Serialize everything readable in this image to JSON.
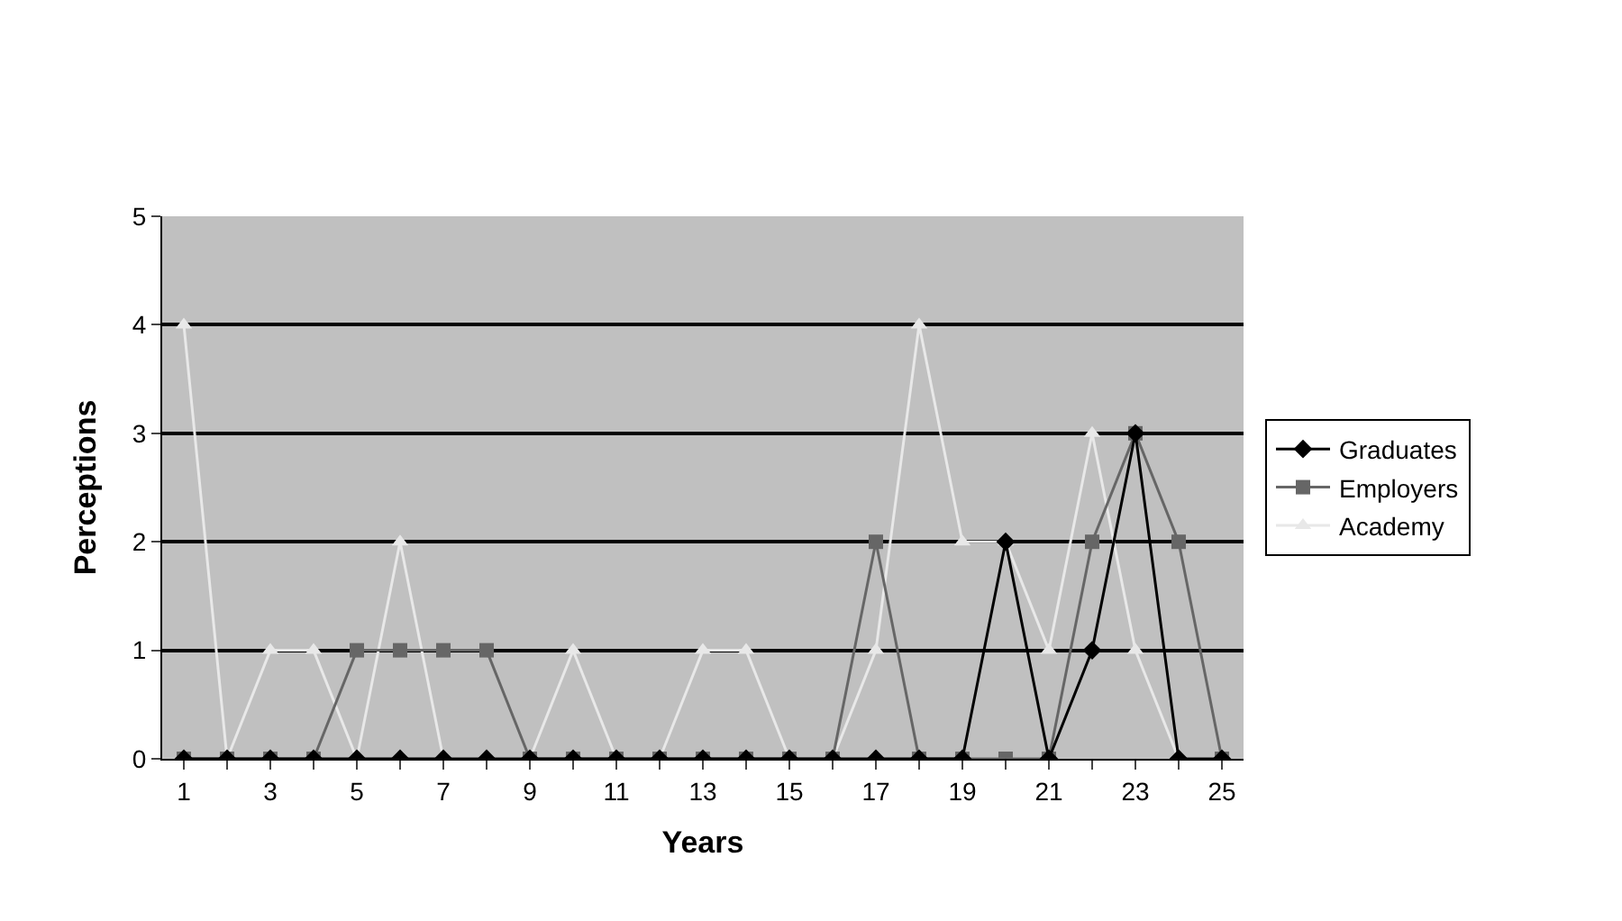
{
  "chart_data": {
    "type": "line",
    "xlabel": "Years",
    "ylabel": "Perceptions",
    "x": [
      1,
      2,
      3,
      4,
      5,
      6,
      7,
      8,
      9,
      10,
      11,
      12,
      13,
      14,
      15,
      16,
      17,
      18,
      19,
      20,
      21,
      22,
      23,
      24,
      25
    ],
    "xlim": [
      0.5,
      25.5
    ],
    "xticks": [
      1,
      {
        "value": 2,
        "label": null
      },
      3,
      {
        "value": 4,
        "label": null
      },
      5,
      {
        "value": 6,
        "label": null
      },
      7,
      {
        "value": 8,
        "label": null
      },
      9,
      {
        "value": 10,
        "label": null
      },
      11,
      {
        "value": 12,
        "label": null
      },
      13,
      {
        "value": 14,
        "label": null
      },
      15,
      {
        "value": 16,
        "label": null
      },
      17,
      {
        "value": 18,
        "label": null
      },
      19,
      {
        "value": 20,
        "label": null
      },
      21,
      {
        "value": 22,
        "label": null
      },
      23,
      {
        "value": 24,
        "label": null
      },
      25
    ],
    "ylim": [
      0,
      5
    ],
    "yticks": [
      0,
      1,
      2,
      3,
      4,
      5
    ],
    "grid": "y",
    "legend": "right",
    "series": [
      {
        "name": "Graduates",
        "color": "#000000",
        "marker": "diamond",
        "values": [
          0,
          0,
          0,
          0,
          0,
          0,
          0,
          0,
          0,
          0,
          0,
          0,
          0,
          0,
          0,
          0,
          0,
          0,
          0,
          2,
          0,
          1,
          3,
          0,
          0
        ]
      },
      {
        "name": "Employers",
        "color": "#666666",
        "marker": "square",
        "values": [
          0,
          0,
          0,
          0,
          1,
          1,
          1,
          1,
          0,
          0,
          0,
          0,
          0,
          0,
          0,
          0,
          2,
          0,
          0,
          0,
          0,
          2,
          3,
          2,
          0
        ]
      },
      {
        "name": "Academy",
        "color": "#e8e8e8",
        "marker": "triangle",
        "values": [
          4,
          0,
          1,
          1,
          0,
          2,
          0,
          0,
          0,
          1,
          0,
          0,
          1,
          1,
          0,
          0,
          1,
          4,
          2,
          2,
          1,
          3,
          1,
          0,
          0
        ]
      }
    ]
  }
}
